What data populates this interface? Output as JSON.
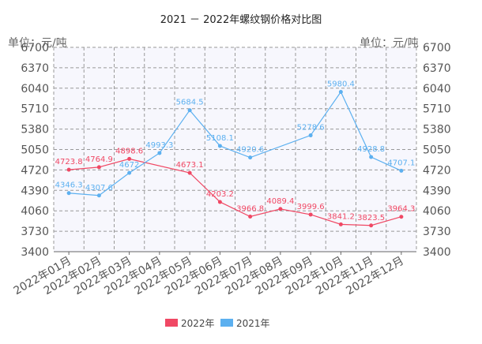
{
  "chart_data": {
    "type": "line",
    "title": "2021 － 2022年螺纹钢价格对比图",
    "y_unit_left": "单位：元/吨",
    "y_unit_right": "单位：元/吨",
    "categories": [
      "2022年01月",
      "2022年02月",
      "2022年03月",
      "2022年04月",
      "2022年05月",
      "2022年06月",
      "2022年07月",
      "2022年08月",
      "2022年09月",
      "2022年10月",
      "2022年11月",
      "2022年12月"
    ],
    "ylim": [
      3400,
      6700
    ],
    "yticks": [
      3400,
      3730,
      4060,
      4390,
      4720,
      5050,
      5380,
      5710,
      6040,
      6370,
      6700
    ],
    "grid": true,
    "legend_position": "bottom",
    "series": [
      {
        "name": "2022年",
        "color": "#f04864",
        "points": [
          {
            "index": 0,
            "value": 4723.8,
            "label": "4723.8"
          },
          {
            "index": 1,
            "value": 4764.9,
            "label": "4764.9"
          },
          {
            "index": 2,
            "value": 4898.6,
            "label": "4898.6"
          },
          {
            "index": 4,
            "value": 4673.1,
            "label": "4673.1"
          },
          {
            "index": 5,
            "value": 4203.2,
            "label": "4203.2"
          },
          {
            "index": 6,
            "value": 3966.8,
            "label": "3966.8"
          },
          {
            "index": 7,
            "value": 4089.4,
            "label": "4089.4"
          },
          {
            "index": 8,
            "value": 3999.6,
            "label": "3999.6"
          },
          {
            "index": 9,
            "value": 3841.2,
            "label": "3841.2"
          },
          {
            "index": 10,
            "value": 3823.5,
            "label": "3823.5"
          },
          {
            "index": 11,
            "value": 3964.3,
            "label": "3964.3"
          }
        ]
      },
      {
        "name": "2021年",
        "color": "#5cb0f0",
        "points": [
          {
            "index": 0,
            "value": 4346.3,
            "label": "4346.3"
          },
          {
            "index": 1,
            "value": 4307.6,
            "label": "4307.6"
          },
          {
            "index": 2,
            "value": 4672,
            "label": "4672"
          },
          {
            "index": 3,
            "value": 4993.3,
            "label": "4993.3"
          },
          {
            "index": 4,
            "value": 5684.5,
            "label": "5684.5"
          },
          {
            "index": 5,
            "value": 5108.1,
            "label": "5108.1"
          },
          {
            "index": 6,
            "value": 4920.6,
            "label": "4920.6"
          },
          {
            "index": 8,
            "value": 5278.6,
            "label": "5278.6"
          },
          {
            "index": 9,
            "value": 5980.4,
            "label": "5980.4"
          },
          {
            "index": 10,
            "value": 4928.8,
            "label": "4928.8"
          },
          {
            "index": 11,
            "value": 4707.1,
            "label": "4707.1"
          }
        ]
      }
    ]
  }
}
